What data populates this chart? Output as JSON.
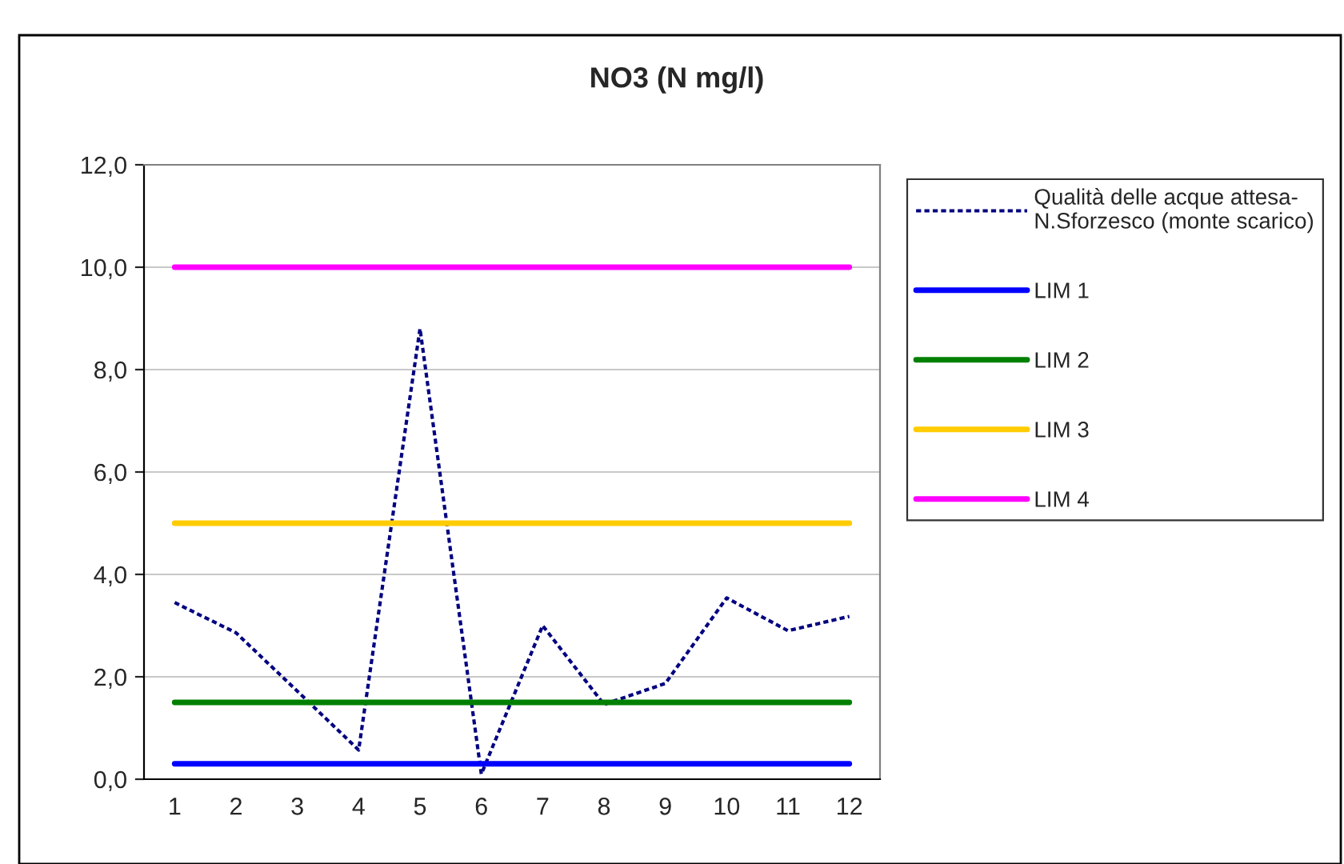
{
  "chart_data": {
    "type": "line",
    "title": "NO3 (N mg/l)",
    "categories": [
      "1",
      "2",
      "3",
      "4",
      "5",
      "6",
      "7",
      "8",
      "9",
      "10",
      "11",
      "12"
    ],
    "series": [
      {
        "name": "Qualità delle acque attesa-N.Sforzesco (monte scarico)",
        "color": "#000080",
        "line_style": "dotted",
        "values": [
          3.45,
          2.86,
          1.72,
          0.57,
          8.8,
          0.1,
          3.0,
          1.46,
          1.87,
          3.54,
          2.9,
          3.18
        ]
      },
      {
        "name": "LIM 1",
        "color": "#0000ff",
        "line_style": "solid",
        "values": [
          0.3,
          0.3,
          0.3,
          0.3,
          0.3,
          0.3,
          0.3,
          0.3,
          0.3,
          0.3,
          0.3,
          0.3
        ]
      },
      {
        "name": "LIM 2",
        "color": "#008000",
        "line_style": "solid",
        "values": [
          1.5,
          1.5,
          1.5,
          1.5,
          1.5,
          1.5,
          1.5,
          1.5,
          1.5,
          1.5,
          1.5,
          1.5
        ]
      },
      {
        "name": "LIM 3",
        "color": "#ffcc00",
        "line_style": "solid",
        "values": [
          5,
          5,
          5,
          5,
          5,
          5,
          5,
          5,
          5,
          5,
          5,
          5
        ]
      },
      {
        "name": "LIM 4",
        "color": "#ff00ff",
        "line_style": "solid",
        "values": [
          10,
          10,
          10,
          10,
          10,
          10,
          10,
          10,
          10,
          10,
          10,
          10
        ]
      }
    ],
    "ylim": [
      0,
      12
    ],
    "yticks": [
      {
        "value": 0,
        "label": "0,0"
      },
      {
        "value": 2,
        "label": "2,0"
      },
      {
        "value": 4,
        "label": "4,0"
      },
      {
        "value": 6,
        "label": "6,0"
      },
      {
        "value": 8,
        "label": "8,0"
      },
      {
        "value": 10,
        "label": "10,0"
      },
      {
        "value": 12,
        "label": "12,0"
      }
    ],
    "grid": "y",
    "legend": "right",
    "marker": "none"
  }
}
